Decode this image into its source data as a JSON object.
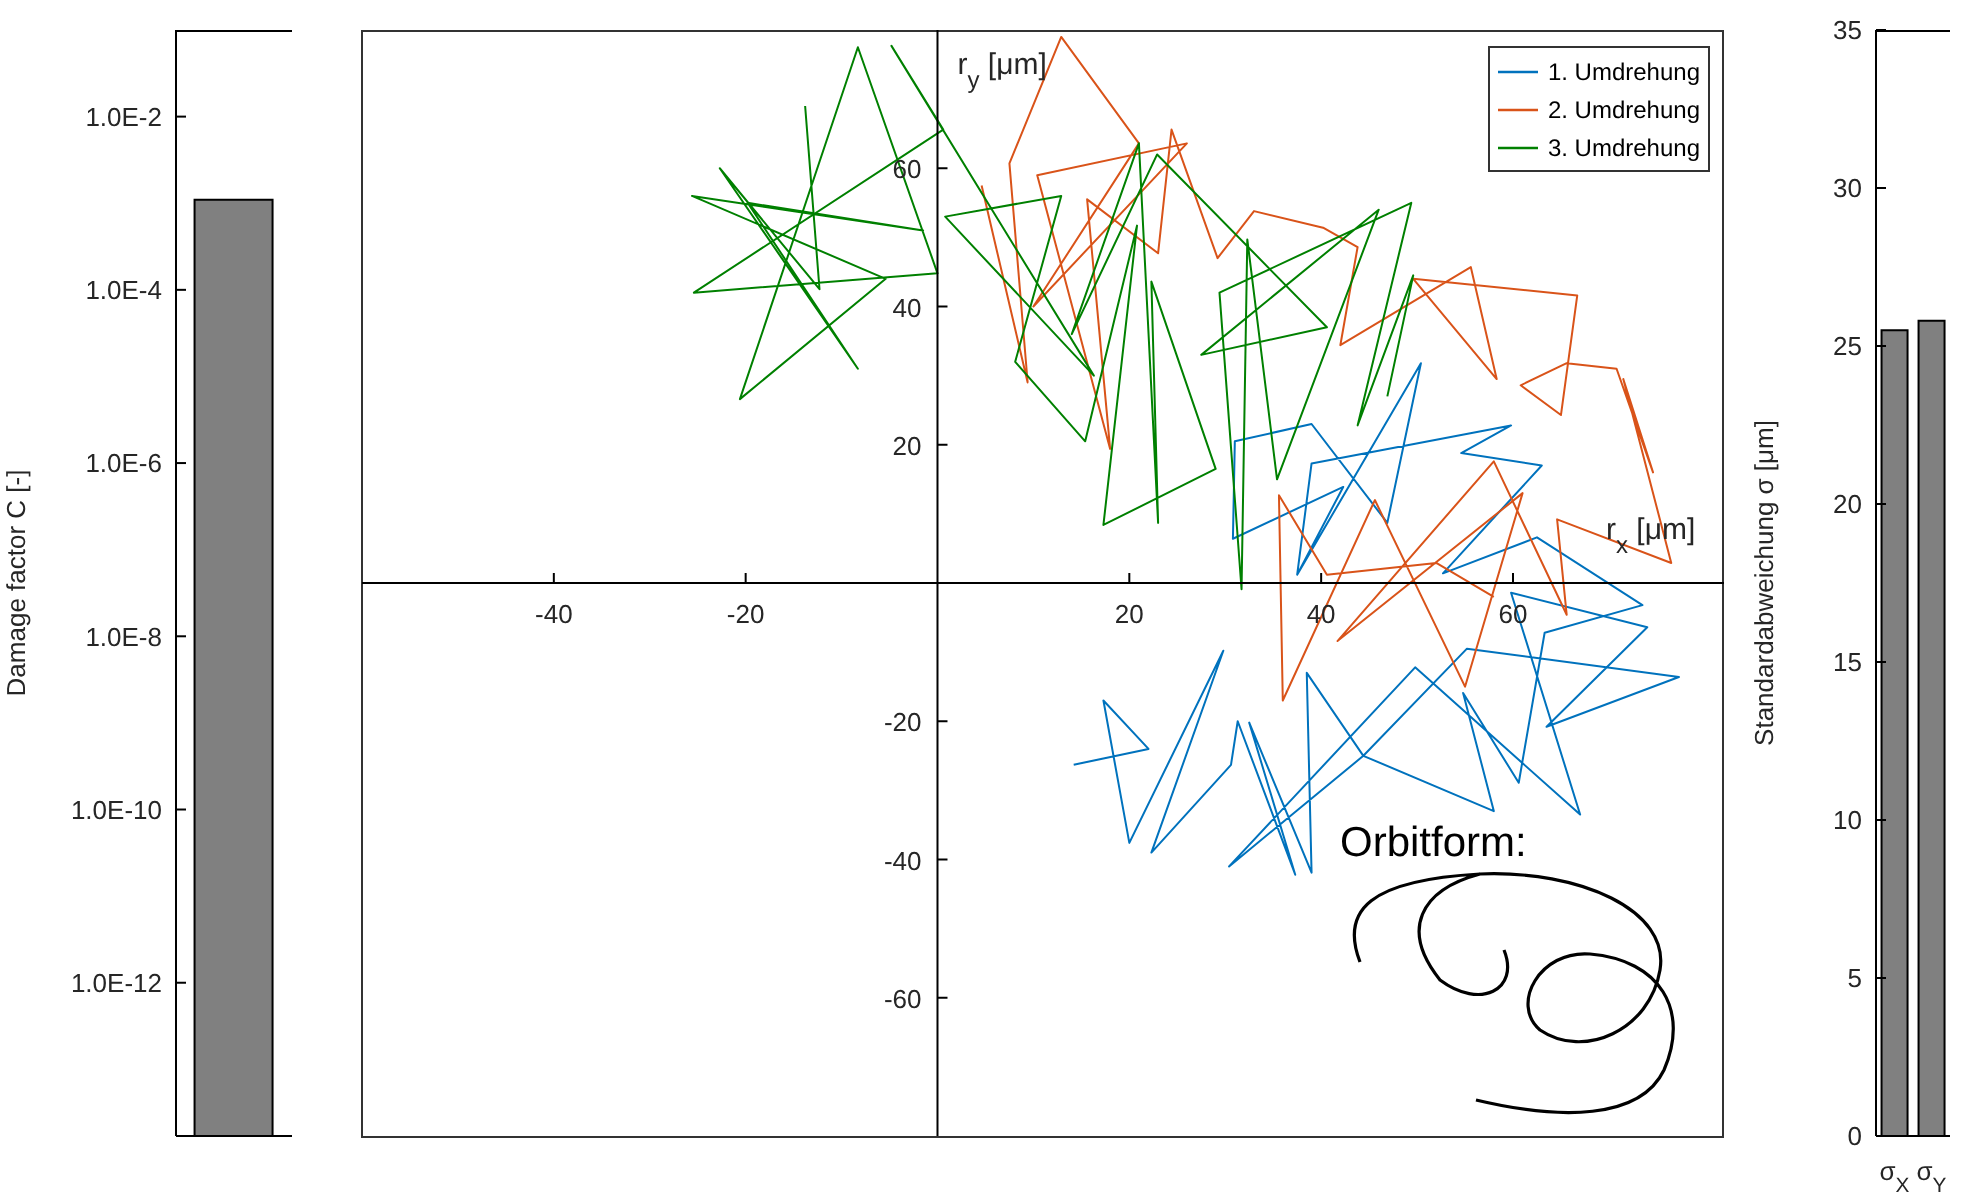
{
  "chart_data": [
    {
      "type": "bar",
      "ylabel": "Damage factor C [-]",
      "categories": [
        null
      ],
      "values": [
        0.0011
      ],
      "color": "#808080",
      "log": true,
      "ylim": [
        1.7e-14,
        0.1
      ],
      "yticks": [
        {
          "value": 1e-12,
          "label": "1.0E-12"
        },
        {
          "value": 1e-10,
          "label": "1.0E-10"
        },
        {
          "value": 1e-08,
          "label": "1.0E-8"
        },
        {
          "value": 1e-06,
          "label": "1.0E-6"
        },
        {
          "value": 0.0001,
          "label": "1.0E-4"
        },
        {
          "value": 0.01,
          "label": "1.0E-2"
        }
      ],
      "grid": false,
      "legend": false
    },
    {
      "type": "line",
      "xlabel": "r$_{x}$ [μm]",
      "ylabel": "r$_{y}$ [μm]",
      "annotations": [
        "Orbitform:"
      ],
      "xlim": [
        -60,
        82
      ],
      "xticks": [
        -40,
        -20,
        20,
        40,
        60
      ],
      "ylim": [
        -80,
        80
      ],
      "yticks": [
        -60,
        -40,
        -20,
        20,
        40,
        60
      ],
      "grid": false,
      "legend": "top right",
      "marker": "none",
      "line_style": "solid",
      "series": [
        {
          "name": "1. Umdrehung",
          "color": "#0072bd",
          "x": [
            14.2,
            22,
            17.3,
            20,
            29.8,
            22.3,
            30.6,
            31.3,
            37.3,
            32.5,
            39,
            38.5,
            44.4,
            55.2,
            77.3,
            63.5,
            74,
            59.8,
            67,
            49.8,
            30.4,
            44.4,
            58,
            54.8,
            60.6,
            63.3,
            73.5,
            62.5,
            52.7,
            63,
            54.6,
            59.8,
            39,
            37.5,
            42.3,
            30.8,
            31,
            39,
            46.9,
            50.4,
            37.5
          ],
          "values": [
            -26.3,
            -24,
            -17,
            -37.6,
            -9.8,
            -39,
            -26.3,
            -20,
            -42.2,
            -20.2,
            -41.9,
            -13,
            -25,
            -9.5,
            -13.6,
            -20.8,
            -6.4,
            -1.4,
            -33.5,
            -12.2,
            -41,
            -25,
            -33,
            -15.9,
            -28.9,
            -7.2,
            -3.2,
            6.6,
            1.4,
            17,
            18.8,
            22.8,
            17.3,
            1.2,
            13.9,
            6.4,
            20.5,
            23,
            8.7,
            31.8,
            1.2
          ]
        },
        {
          "name": "2. Umdrehung",
          "color": "#d95319",
          "x": [
            4.6,
            9.4,
            7.5,
            12.9,
            21,
            10,
            26,
            10.4,
            18,
            15.6,
            23,
            24.4,
            29.2,
            33,
            40.2,
            43.8,
            42,
            55.6,
            58.3,
            49.6,
            66.7,
            65,
            60.8,
            65.6,
            70.8,
            74.6,
            71.5,
            76.5,
            64.6,
            65.6,
            58,
            41.7,
            61,
            55,
            45.6,
            36,
            35.6,
            40.6,
            52,
            58
          ],
          "values": [
            57.5,
            29,
            60.7,
            79,
            63.6,
            40,
            63.6,
            59,
            19.4,
            55.5,
            47.7,
            65.6,
            47,
            53.8,
            51.4,
            48.6,
            34.4,
            45.7,
            29.5,
            44,
            41.6,
            24.3,
            28.6,
            31.8,
            31,
            16,
            29.5,
            2.9,
            9.2,
            -4.6,
            17.6,
            -8.4,
            13,
            -15,
            12,
            -17,
            12.7,
            1.2,
            2.9,
            -2
          ]
        },
        {
          "name": "3. Umdrehung",
          "color": "#008000",
          "x": [
            -13.8,
            -12.3,
            -22.7,
            -8.3,
            -19.8,
            -1.5,
            -25.6,
            -5.4,
            -20.6,
            -8.3,
            0,
            -25.4,
            0.6,
            -4.8,
            16.3,
            0.8,
            12.9,
            8.1,
            15.4,
            20.8,
            17.3,
            29,
            22.3,
            23,
            21,
            14,
            22.9,
            40.6,
            27.5,
            46,
            35.4,
            32.3,
            31.7,
            29.4,
            49.4,
            43.8,
            49.6,
            46.9
          ],
          "values": [
            69,
            42.5,
            60,
            31,
            55,
            51,
            56,
            44,
            26.6,
            77.5,
            44.8,
            42,
            65.6,
            77.7,
            30,
            53,
            56,
            32,
            20.5,
            51.7,
            8.4,
            16.5,
            43.6,
            8.7,
            63.6,
            36,
            62,
            37,
            33,
            54,
            15,
            49.7,
            -0.9,
            42,
            55,
            22.8,
            44.5,
            27
          ]
        }
      ]
    },
    {
      "type": "bar",
      "ylabel": "Standardabweichung σ [μm]",
      "categories": [
        "σ$_{X}$",
        "σ$_{Y}$"
      ],
      "values": [
        25.5,
        25.8
      ],
      "color": "#808080",
      "ylim": [
        0,
        35
      ],
      "yticks": [
        0,
        5,
        10,
        15,
        20,
        25,
        30,
        35
      ],
      "grid": false,
      "legend": false
    }
  ]
}
